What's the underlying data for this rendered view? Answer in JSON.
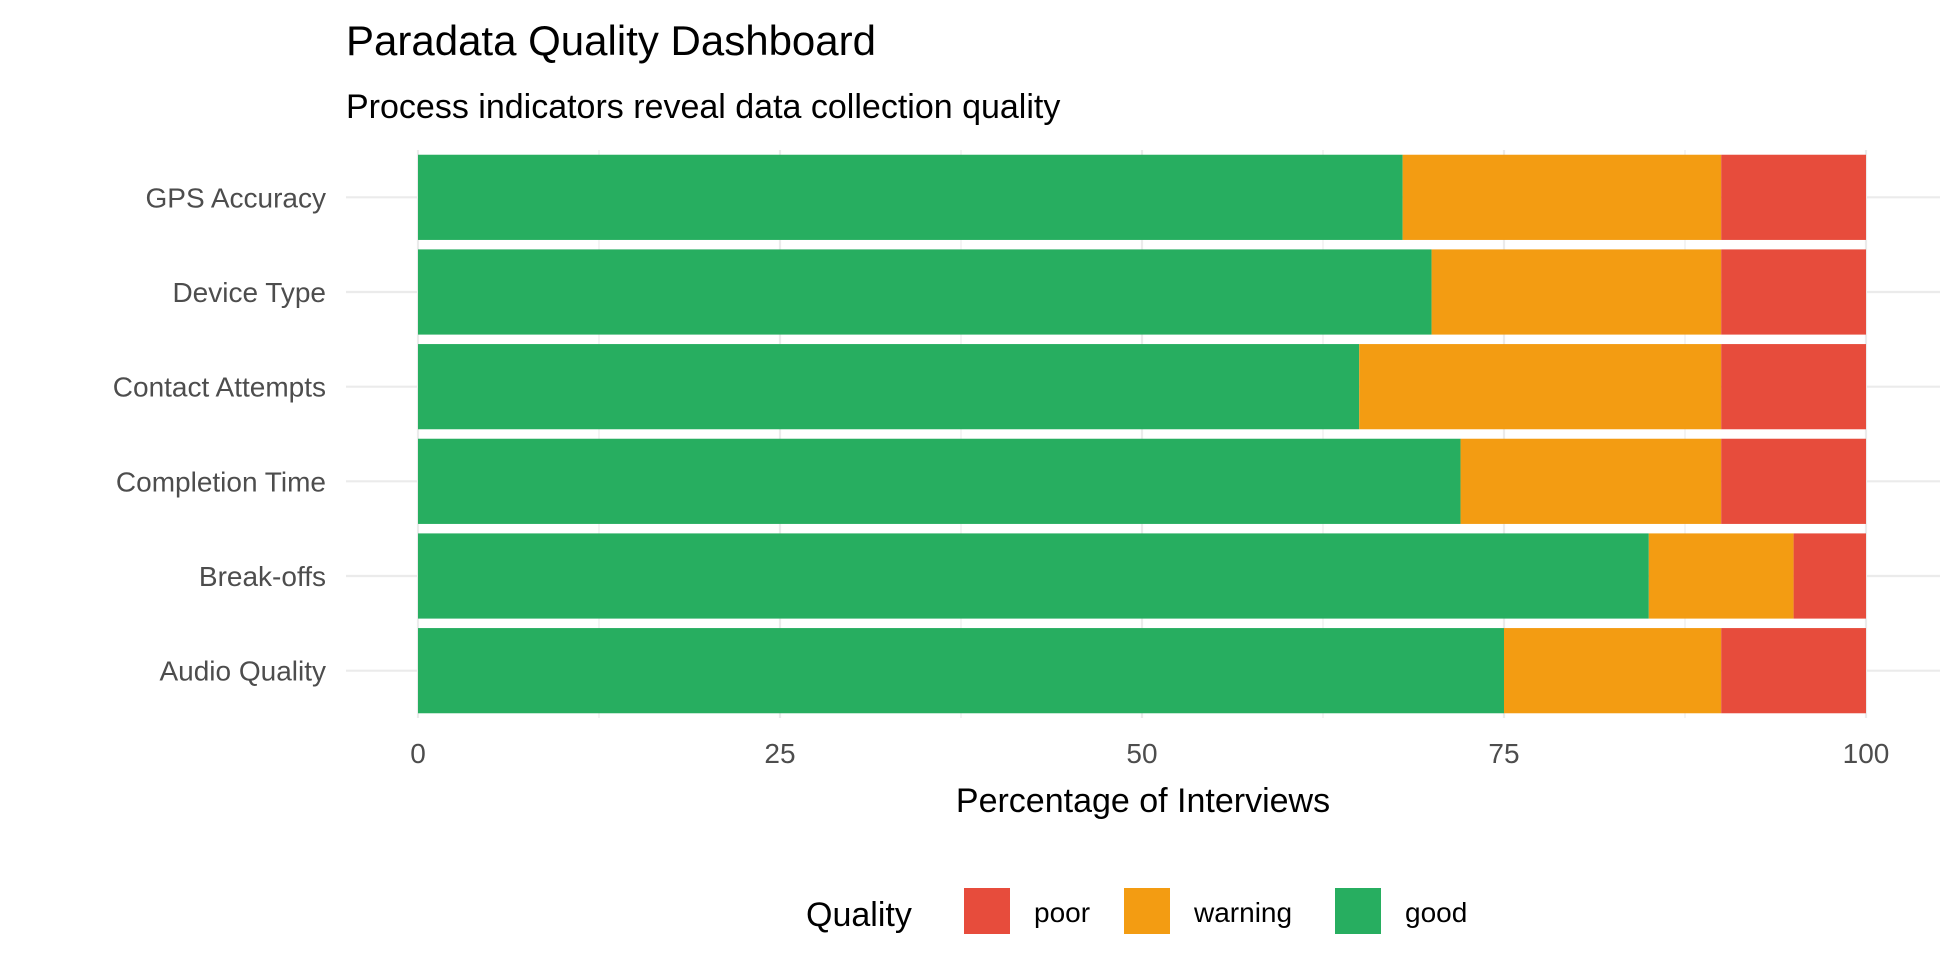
{
  "chart_data": {
    "type": "bar",
    "orientation": "horizontal",
    "stacked": true,
    "title": "Paradata Quality Dashboard",
    "subtitle": "Process indicators reveal data collection quality",
    "xlabel": "Percentage of Interviews",
    "ylabel": "",
    "xlim": [
      0,
      100
    ],
    "x_ticks": [
      0,
      25,
      50,
      75,
      100
    ],
    "grid": true,
    "legend_title": "Quality",
    "legend_position": "bottom",
    "categories": [
      "GPS Accuracy",
      "Device Type",
      "Contact Attempts",
      "Completion Time",
      "Break-offs",
      "Audio Quality"
    ],
    "series": [
      {
        "name": "good",
        "color": "#27AE60",
        "values": [
          68,
          70,
          65,
          72,
          85,
          75
        ]
      },
      {
        "name": "warning",
        "color": "#F39C12",
        "values": [
          22,
          20,
          25,
          18,
          10,
          15
        ]
      },
      {
        "name": "poor",
        "color": "#E74C3C",
        "values": [
          10,
          10,
          10,
          10,
          5,
          10
        ]
      }
    ],
    "legend_order": [
      "poor",
      "warning",
      "good"
    ]
  }
}
